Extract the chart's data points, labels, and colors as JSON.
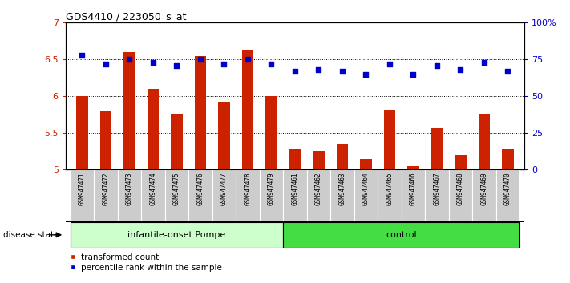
{
  "title": "GDS4410 / 223050_s_at",
  "samples": [
    "GSM947471",
    "GSM947472",
    "GSM947473",
    "GSM947474",
    "GSM947475",
    "GSM947476",
    "GSM947477",
    "GSM947478",
    "GSM947479",
    "GSM947461",
    "GSM947462",
    "GSM947463",
    "GSM947464",
    "GSM947465",
    "GSM947466",
    "GSM947467",
    "GSM947468",
    "GSM947469",
    "GSM947470"
  ],
  "bar_values": [
    6.0,
    5.8,
    6.6,
    6.1,
    5.75,
    6.55,
    5.93,
    6.62,
    6.0,
    5.28,
    5.25,
    5.35,
    5.15,
    5.82,
    5.05,
    5.57,
    5.2,
    5.75,
    5.28
  ],
  "percentile_values": [
    78,
    72,
    75,
    73,
    71,
    75,
    72,
    75,
    72,
    67,
    68,
    67,
    65,
    72,
    65,
    71,
    68,
    73,
    67
  ],
  "bar_color": "#cc2200",
  "percentile_color": "#0000cc",
  "ylim_left": [
    5.0,
    7.0
  ],
  "ylim_right": [
    0,
    100
  ],
  "yticks_left": [
    5.0,
    5.5,
    6.0,
    6.5,
    7.0
  ],
  "ytick_labels_left": [
    "5",
    "5.5",
    "6",
    "6.5",
    "7"
  ],
  "yticks_right": [
    0,
    25,
    50,
    75,
    100
  ],
  "ytick_labels_right": [
    "0",
    "25",
    "50",
    "75",
    "100%"
  ],
  "group1_label": "infantile-onset Pompe",
  "group2_label": "control",
  "group1_color": "#ccffcc",
  "group2_color": "#44dd44",
  "disease_state_label": "disease state",
  "legend_bar_label": "transformed count",
  "legend_percentile_label": "percentile rank within the sample",
  "n_group1": 9,
  "n_group2": 10,
  "plot_bg": "#ffffff",
  "label_bg": "#cccccc",
  "dotted_levels": [
    5.5,
    6.0,
    6.5
  ]
}
